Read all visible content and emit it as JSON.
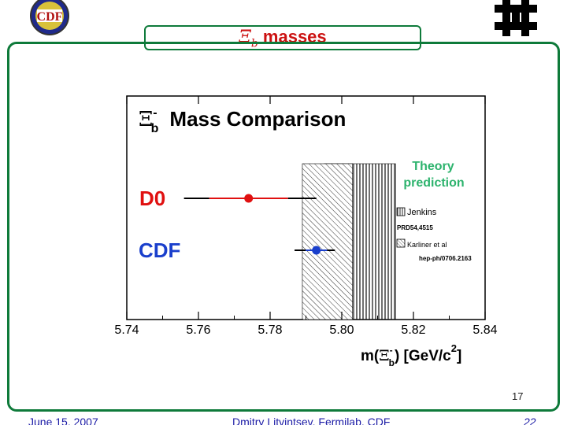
{
  "slide": {
    "title_symbol": "Ξ",
    "title_sub": "b",
    "title_text": " masses",
    "page_number": "17"
  },
  "footer": {
    "date": "June 15, 2007",
    "author": "Dmitry Litvintsev, Fermilab, CDF",
    "page": "22"
  },
  "logos": {
    "left": "CDF",
    "right": "Fermilab"
  },
  "chart_data": {
    "type": "scatter",
    "title_symbol": "Ξ",
    "title_sup": "-",
    "title_sub": "b",
    "title_text": "Mass Comparison",
    "x_ticks": [
      "5.74",
      "5.76",
      "5.78",
      "5.80",
      "5.82",
      "5.84"
    ],
    "x_tick_values": [
      5.74,
      5.76,
      5.78,
      5.8,
      5.82,
      5.84
    ],
    "xlim": [
      5.74,
      5.84
    ],
    "xlabel": {
      "prefix": "m(",
      "symbol": "Ξ",
      "sup": "-",
      "sub": "b",
      "suffix": ")  [GeV/c",
      "unit_sup": "2",
      "end": "]"
    },
    "series": [
      {
        "name": "D0",
        "x": 5.774,
        "err": 0.011,
        "color": "#e01010"
      },
      {
        "name": "CDF",
        "x": 5.7929,
        "err": 0.003,
        "color": "#1a3fcc"
      }
    ],
    "theory_bands": [
      {
        "label": "Jenkins",
        "ref": "PRD54,4515",
        "range": [
          5.795,
          5.815
        ],
        "pattern": "vertical"
      },
      {
        "label": "Karliner et al",
        "ref": "hep-ph/0706.2163",
        "range": [
          5.789,
          5.803
        ],
        "pattern": "diagonal"
      }
    ],
    "theory_title": [
      "Theory",
      "prediction"
    ],
    "theory_color": "#2db36d"
  }
}
